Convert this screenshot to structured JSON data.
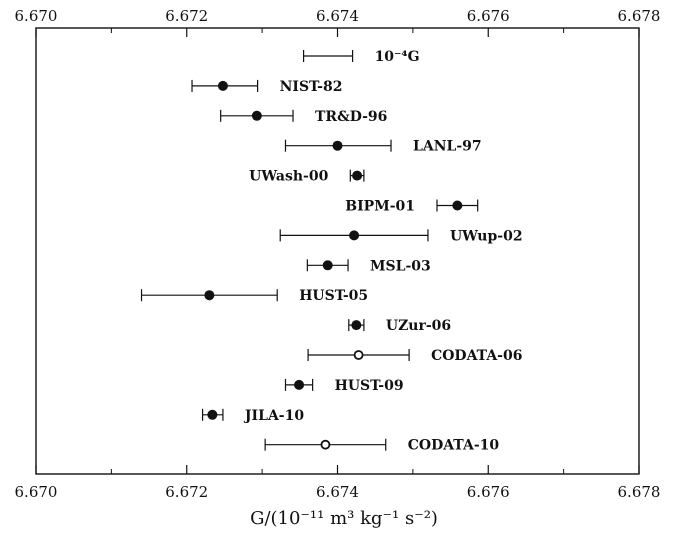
{
  "chart_data": {
    "type": "scatter",
    "title": "",
    "xlabel": "G/(10⁻¹¹ m³ kg⁻¹ s⁻²)",
    "ylabel": "",
    "xlim": [
      6.67,
      6.678
    ],
    "xticks": [
      "6.670",
      "6.672",
      "6.674",
      "6.676",
      "6.678"
    ],
    "grid": false,
    "legend": "none",
    "colors": {
      "axis": "#111111",
      "marker": "#111111",
      "open_marker_fill": "#ffffff"
    },
    "points": [
      {
        "label": "10⁻⁴G",
        "value": null,
        "err_low": 6.67355,
        "err_high": 6.6742,
        "marker": "none"
      },
      {
        "label": "NIST-82",
        "value": 6.67248,
        "err_low": 6.67207,
        "err_high": 6.67294,
        "marker": "filled"
      },
      {
        "label": "TR&D-96",
        "value": 6.67293,
        "err_low": 6.67245,
        "err_high": 6.67341,
        "marker": "filled"
      },
      {
        "label": "LANL-97",
        "value": 6.674,
        "err_low": 6.67331,
        "err_high": 6.67471,
        "marker": "filled"
      },
      {
        "label": "UWash-00",
        "value": 6.67426,
        "err_low": 6.67417,
        "err_high": 6.67435,
        "marker": "filled"
      },
      {
        "label": "BIPM-01",
        "value": 6.67559,
        "err_low": 6.67532,
        "err_high": 6.67586,
        "marker": "filled"
      },
      {
        "label": "UWup-02",
        "value": 6.67422,
        "err_low": 6.67324,
        "err_high": 6.6752,
        "marker": "filled"
      },
      {
        "label": "MSL-03",
        "value": 6.67387,
        "err_low": 6.6736,
        "err_high": 6.67414,
        "marker": "filled"
      },
      {
        "label": "HUST-05",
        "value": 6.6723,
        "err_low": 6.6714,
        "err_high": 6.6732,
        "marker": "filled"
      },
      {
        "label": "UZur-06",
        "value": 6.67425,
        "err_low": 6.67415,
        "err_high": 6.67435,
        "marker": "filled"
      },
      {
        "label": "CODATA-06",
        "value": 6.67428,
        "err_low": 6.67361,
        "err_high": 6.67495,
        "marker": "open"
      },
      {
        "label": "HUST-09",
        "value": 6.67349,
        "err_low": 6.67331,
        "err_high": 6.67367,
        "marker": "filled"
      },
      {
        "label": "JILA-10",
        "value": 6.67234,
        "err_low": 6.67221,
        "err_high": 6.67248,
        "marker": "filled"
      },
      {
        "label": "CODATA-10",
        "value": 6.67384,
        "err_low": 6.67304,
        "err_high": 6.67464,
        "marker": "open"
      }
    ]
  }
}
